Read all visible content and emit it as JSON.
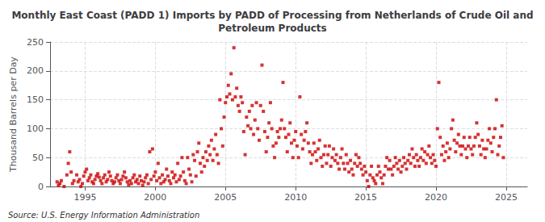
{
  "chart_data": {
    "type": "scatter",
    "title": "Monthly East Coast (PADD 1) Imports by PADD of Processing from Netherlands of Crude Oil and\nPetroleum Products",
    "ylabel": "Thousand Barrels per Day",
    "source": "Source: U.S. Energy Information Administration",
    "color": "#CC0000",
    "marker": "square",
    "grid": true,
    "xlim": [
      1992.5,
      2026.5
    ],
    "ylim": [
      0,
      250
    ],
    "xticks": [
      1995,
      2000,
      2005,
      2010,
      2015,
      2020,
      2025
    ],
    "yticks": [
      0,
      50,
      100,
      150,
      200,
      250
    ],
    "x": [
      1993.0,
      1993.1,
      1993.2,
      1993.3,
      1993.5,
      1993.7,
      1993.8,
      1993.9,
      1994.0,
      1994.1,
      1994.2,
      1994.4,
      1994.5,
      1994.6,
      1994.7,
      1994.8,
      1994.9,
      1995.0,
      1995.1,
      1995.2,
      1995.3,
      1995.4,
      1995.5,
      1995.6,
      1995.7,
      1995.8,
      1995.9,
      1996.0,
      1996.1,
      1996.2,
      1996.3,
      1996.4,
      1996.5,
      1996.6,
      1996.7,
      1996.8,
      1996.9,
      1997.0,
      1997.1,
      1997.2,
      1997.3,
      1997.4,
      1997.5,
      1997.6,
      1997.7,
      1997.8,
      1997.9,
      1998.0,
      1998.1,
      1998.2,
      1998.3,
      1998.4,
      1998.5,
      1998.6,
      1998.7,
      1998.8,
      1998.9,
      1999.0,
      1999.1,
      1999.2,
      1999.3,
      1999.4,
      1999.5,
      1999.6,
      1999.7,
      1999.8,
      1999.9,
      2000.0,
      2000.1,
      2000.2,
      2000.3,
      2000.4,
      2000.5,
      2000.6,
      2000.7,
      2000.8,
      2000.9,
      2001.0,
      2001.1,
      2001.2,
      2001.3,
      2001.4,
      2001.5,
      2001.6,
      2001.7,
      2001.8,
      2001.9,
      2002.0,
      2002.1,
      2002.2,
      2002.3,
      2002.4,
      2002.5,
      2002.6,
      2002.7,
      2002.8,
      2002.9,
      2003.0,
      2003.1,
      2003.2,
      2003.3,
      2003.4,
      2003.5,
      2003.6,
      2003.7,
      2003.8,
      2003.9,
      2004.0,
      2004.1,
      2004.2,
      2004.3,
      2004.4,
      2004.5,
      2004.6,
      2004.7,
      2004.8,
      2004.9,
      2005.0,
      2005.1,
      2005.2,
      2005.3,
      2005.4,
      2005.5,
      2005.6,
      2005.7,
      2005.8,
      2005.9,
      2006.0,
      2006.1,
      2006.2,
      2006.3,
      2006.4,
      2006.5,
      2006.6,
      2006.7,
      2006.8,
      2006.9,
      2007.0,
      2007.1,
      2007.2,
      2007.3,
      2007.4,
      2007.5,
      2007.6,
      2007.7,
      2007.8,
      2007.9,
      2008.0,
      2008.1,
      2008.2,
      2008.3,
      2008.4,
      2008.5,
      2008.6,
      2008.7,
      2008.8,
      2008.9,
      2009.0,
      2009.1,
      2009.2,
      2009.3,
      2009.4,
      2009.5,
      2009.6,
      2009.7,
      2009.8,
      2009.9,
      2010.0,
      2010.1,
      2010.2,
      2010.3,
      2010.4,
      2010.5,
      2010.6,
      2010.7,
      2010.8,
      2010.9,
      2011.0,
      2011.1,
      2011.2,
      2011.3,
      2011.4,
      2011.5,
      2011.6,
      2011.7,
      2011.8,
      2011.9,
      2012.0,
      2012.1,
      2012.2,
      2012.3,
      2012.4,
      2012.5,
      2012.6,
      2012.7,
      2012.8,
      2012.9,
      2013.0,
      2013.1,
      2013.2,
      2013.3,
      2013.4,
      2013.5,
      2013.6,
      2013.7,
      2013.8,
      2013.9,
      2014.0,
      2014.1,
      2014.2,
      2014.3,
      2014.4,
      2014.5,
      2014.6,
      2014.7,
      2014.8,
      2014.9,
      2015.0,
      2015.1,
      2015.2,
      2015.3,
      2015.4,
      2015.5,
      2015.6,
      2015.7,
      2015.8,
      2015.9,
      2016.0,
      2016.1,
      2016.2,
      2016.3,
      2016.4,
      2016.5,
      2016.6,
      2016.7,
      2016.8,
      2016.9,
      2017.0,
      2017.1,
      2017.2,
      2017.3,
      2017.4,
      2017.5,
      2017.6,
      2017.7,
      2017.8,
      2017.9,
      2018.0,
      2018.1,
      2018.2,
      2018.3,
      2018.4,
      2018.5,
      2018.6,
      2018.7,
      2018.8,
      2018.9,
      2019.0,
      2019.1,
      2019.2,
      2019.3,
      2019.4,
      2019.5,
      2019.6,
      2019.7,
      2019.8,
      2019.9,
      2020.0,
      2020.1,
      2020.2,
      2020.3,
      2020.4,
      2020.5,
      2020.6,
      2020.7,
      2020.8,
      2020.9,
      2021.0,
      2021.1,
      2021.2,
      2021.3,
      2021.4,
      2021.5,
      2021.6,
      2021.7,
      2021.8,
      2021.9,
      2022.0,
      2022.1,
      2022.2,
      2022.3,
      2022.4,
      2022.5,
      2022.6,
      2022.7,
      2022.8,
      2022.9,
      2023.0,
      2023.1,
      2023.2,
      2023.3,
      2023.4,
      2023.5,
      2023.6,
      2023.7,
      2023.8,
      2023.9,
      2024.0,
      2024.1,
      2024.2,
      2024.3,
      2024.4,
      2024.5,
      2024.6,
      2024.7,
      2024.8
    ],
    "values": [
      8,
      2,
      5,
      10,
      0,
      20,
      40,
      60,
      25,
      5,
      10,
      20,
      8,
      12,
      0,
      5,
      18,
      25,
      30,
      10,
      15,
      20,
      8,
      5,
      12,
      18,
      22,
      16,
      10,
      5,
      15,
      20,
      8,
      12,
      25,
      18,
      10,
      5,
      8,
      15,
      20,
      10,
      5,
      12,
      18,
      25,
      15,
      8,
      3,
      10,
      5,
      15,
      20,
      8,
      12,
      5,
      18,
      10,
      2,
      8,
      15,
      20,
      5,
      60,
      12,
      65,
      18,
      25,
      10,
      40,
      15,
      5,
      20,
      8,
      12,
      30,
      18,
      10,
      5,
      25,
      15,
      20,
      8,
      40,
      12,
      18,
      50,
      25,
      10,
      5,
      50,
      30,
      20,
      8,
      55,
      45,
      18,
      60,
      75,
      40,
      25,
      50,
      35,
      60,
      45,
      70,
      55,
      80,
      45,
      65,
      90,
      55,
      40,
      150,
      100,
      70,
      120,
      145,
      155,
      175,
      160,
      195,
      150,
      240,
      155,
      170,
      140,
      130,
      155,
      145,
      95,
      55,
      120,
      105,
      130,
      100,
      140,
      90,
      115,
      145,
      100,
      80,
      140,
      210,
      130,
      95,
      60,
      85,
      110,
      145,
      100,
      70,
      50,
      75,
      95,
      85,
      100,
      115,
      180,
      100,
      85,
      60,
      90,
      110,
      75,
      50,
      80,
      95,
      70,
      50,
      155,
      90,
      65,
      80,
      95,
      110,
      75,
      60,
      40,
      55,
      75,
      60,
      45,
      65,
      80,
      50,
      35,
      55,
      70,
      40,
      55,
      70,
      35,
      50,
      65,
      45,
      55,
      40,
      30,
      50,
      65,
      40,
      30,
      55,
      40,
      25,
      45,
      30,
      20,
      40,
      55,
      35,
      50,
      40,
      30,
      20,
      35,
      25,
      10,
      0,
      20,
      35,
      15,
      10,
      5,
      20,
      35,
      25,
      15,
      5,
      20,
      35,
      50,
      30,
      45,
      30,
      20,
      35,
      50,
      40,
      30,
      45,
      25,
      35,
      50,
      40,
      30,
      45,
      55,
      40,
      65,
      50,
      35,
      55,
      45,
      35,
      50,
      65,
      45,
      60,
      40,
      55,
      70,
      50,
      40,
      55,
      45,
      35,
      100,
      180,
      85,
      55,
      70,
      45,
      60,
      75,
      50,
      65,
      100,
      115,
      80,
      60,
      75,
      90,
      70,
      55,
      70,
      85,
      65,
      50,
      70,
      85,
      65,
      55,
      70,
      85,
      110,
      90,
      70,
      55,
      80,
      65,
      50,
      65,
      80,
      100,
      75,
      60,
      85,
      100,
      150,
      55,
      70,
      85,
      105,
      50
    ]
  }
}
